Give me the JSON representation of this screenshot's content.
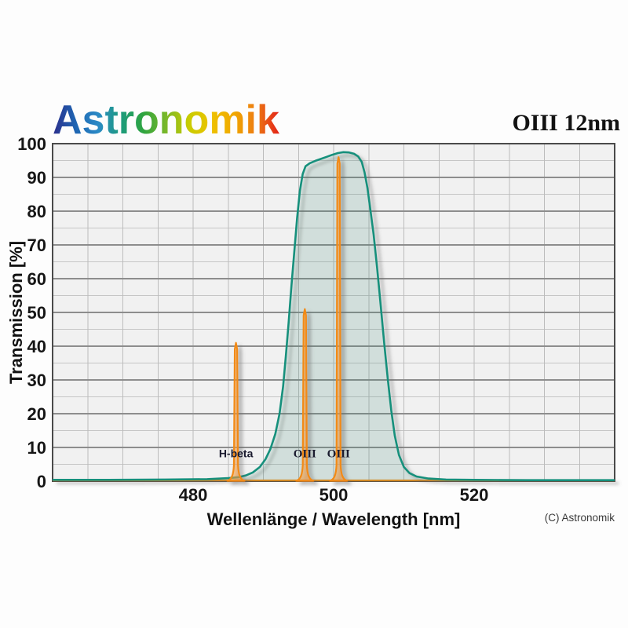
{
  "brand": {
    "logo_text": "Astronomik"
  },
  "header": {
    "product_title": "OIII 12nm"
  },
  "footer": {
    "copyright": "(C) Astronomik"
  },
  "chart_data": {
    "type": "area",
    "title": "OIII 12nm",
    "xlabel": "Wellenlänge / Wavelength [nm]",
    "ylabel": "Transmission [%]",
    "xlim": [
      460,
      540
    ],
    "ylim": [
      0,
      100
    ],
    "x_ticks": [
      480,
      500,
      520
    ],
    "y_ticks": [
      0,
      10,
      20,
      30,
      40,
      50,
      60,
      70,
      80,
      90,
      100
    ],
    "x_minor_step_nm": 5,
    "y_minor_step_pct": 5,
    "grid": true,
    "legend": "none",
    "series": [
      {
        "name": "filter-transmission-curve",
        "color": "#15907c",
        "fill": "rgba(21,144,124,0.12)",
        "points": [
          [
            460,
            0.4
          ],
          [
            468,
            0.4
          ],
          [
            476,
            0.5
          ],
          [
            482,
            0.6
          ],
          [
            485,
            0.9
          ],
          [
            486.5,
            1.2
          ],
          [
            487.5,
            1.7
          ],
          [
            488.5,
            2.6
          ],
          [
            489.5,
            4.2
          ],
          [
            490.3,
            6.5
          ],
          [
            491,
            9.5
          ],
          [
            491.7,
            14
          ],
          [
            492.3,
            20
          ],
          [
            492.8,
            28
          ],
          [
            493.2,
            37
          ],
          [
            493.6,
            47
          ],
          [
            494,
            58
          ],
          [
            494.4,
            68
          ],
          [
            494.8,
            78
          ],
          [
            495.2,
            86
          ],
          [
            495.6,
            91
          ],
          [
            496,
            93.3
          ],
          [
            496.6,
            94.2
          ],
          [
            497.4,
            94.9
          ],
          [
            498.2,
            95.5
          ],
          [
            499,
            96.1
          ],
          [
            499.8,
            96.7
          ],
          [
            500.6,
            97.2
          ],
          [
            501.4,
            97.5
          ],
          [
            502.2,
            97.4
          ],
          [
            502.9,
            97
          ],
          [
            503.5,
            96.2
          ],
          [
            504,
            94.6
          ],
          [
            504.4,
            91.5
          ],
          [
            504.8,
            87
          ],
          [
            505.2,
            81
          ],
          [
            505.7,
            73
          ],
          [
            506.2,
            63
          ],
          [
            506.7,
            52
          ],
          [
            507.2,
            41
          ],
          [
            507.7,
            30.5
          ],
          [
            508.2,
            21
          ],
          [
            508.7,
            13.5
          ],
          [
            509.3,
            7.8
          ],
          [
            510,
            4.2
          ],
          [
            510.8,
            2.4
          ],
          [
            511.8,
            1.4
          ],
          [
            513.5,
            0.8
          ],
          [
            516,
            0.5
          ],
          [
            520,
            0.4
          ],
          [
            528,
            0.3
          ],
          [
            540,
            0.3
          ]
        ]
      }
    ],
    "emission_lines": [
      {
        "label": "H-beta",
        "wavelength_nm": 486.1,
        "peak_pct": 41
      },
      {
        "label": "OIII",
        "wavelength_nm": 495.9,
        "peak_pct": 51
      },
      {
        "label": "OIII",
        "wavelength_nm": 500.7,
        "peak_pct": 96
      }
    ],
    "emission_label_center_pct": 8.3
  },
  "colors": {
    "page_bg": "#fdfdfd",
    "plot_bg": "#f1f1f1",
    "frame": "#4a4a4a",
    "grid_major": "#8d8d8d",
    "grid_minor": "#c6c6c6",
    "grid_vertical": "#bcbcbc",
    "curve": "#15907c",
    "curve_fill": "rgba(21,144,124,0.12)",
    "emission": "#f28a15",
    "emission_fill": "rgba(243,155,60,0.55)",
    "tick_text": "#161616",
    "emission_label_text": "#1a1a2e",
    "logo_gradient": [
      "#2c2e8b",
      "#1e64b2",
      "#2b8ac6",
      "#1d9b7e",
      "#2fa43f",
      "#7ab829",
      "#c8cc00",
      "#eec200",
      "#f0a800",
      "#ed7a13",
      "#e32119"
    ]
  }
}
